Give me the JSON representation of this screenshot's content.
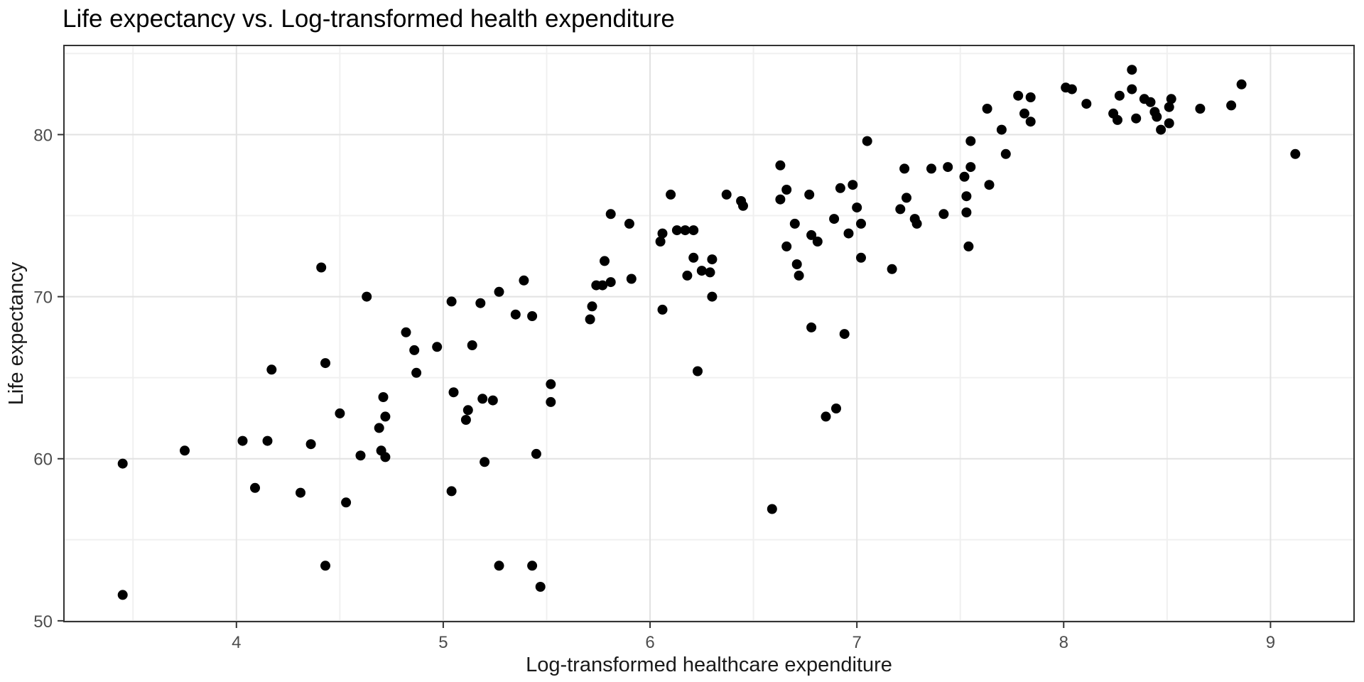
{
  "chart_data": {
    "type": "scatter",
    "title": "Life expectancy vs. Log-transformed health expenditure",
    "xlabel": "Log-transformed healthcare expenditure",
    "ylabel": "Life expectancy",
    "x_ticks": [
      4,
      5,
      6,
      7,
      8,
      9
    ],
    "y_ticks": [
      50,
      60,
      70,
      80
    ],
    "x_minor_ticks": [
      3.5,
      4.5,
      5.5,
      6.5,
      7.5,
      8.5,
      9.5
    ],
    "y_minor_ticks": [
      55,
      65,
      75,
      85
    ],
    "xlim": [
      3.166,
      9.404
    ],
    "ylim": [
      49.95,
      85.5
    ],
    "grid": true,
    "legend_position": "none",
    "points": [
      [
        3.45,
        51.6
      ],
      [
        3.45,
        59.7
      ],
      [
        3.75,
        60.5
      ],
      [
        4.03,
        61.1
      ],
      [
        4.09,
        58.2
      ],
      [
        4.15,
        61.1
      ],
      [
        4.17,
        65.5
      ],
      [
        4.31,
        57.9
      ],
      [
        4.36,
        60.9
      ],
      [
        4.41,
        71.8
      ],
      [
        4.43,
        53.4
      ],
      [
        4.43,
        65.9
      ],
      [
        4.5,
        62.8
      ],
      [
        4.53,
        57.3
      ],
      [
        4.6,
        60.2
      ],
      [
        4.63,
        70.0
      ],
      [
        4.69,
        61.9
      ],
      [
        4.7,
        60.5
      ],
      [
        4.71,
        63.8
      ],
      [
        4.72,
        60.1
      ],
      [
        4.72,
        62.6
      ],
      [
        4.82,
        67.8
      ],
      [
        4.86,
        66.7
      ],
      [
        4.87,
        65.3
      ],
      [
        4.97,
        66.9
      ],
      [
        5.04,
        58.0
      ],
      [
        5.04,
        69.7
      ],
      [
        5.05,
        64.1
      ],
      [
        5.11,
        62.4
      ],
      [
        5.12,
        63.0
      ],
      [
        5.14,
        67.0
      ],
      [
        5.18,
        69.6
      ],
      [
        5.19,
        63.7
      ],
      [
        5.2,
        59.8
      ],
      [
        5.24,
        63.6
      ],
      [
        5.27,
        53.4
      ],
      [
        5.27,
        70.3
      ],
      [
        5.35,
        68.9
      ],
      [
        5.39,
        71.0
      ],
      [
        5.43,
        53.4
      ],
      [
        5.43,
        68.8
      ],
      [
        5.45,
        60.3
      ],
      [
        5.47,
        52.1
      ],
      [
        5.52,
        63.5
      ],
      [
        5.52,
        64.6
      ],
      [
        5.71,
        68.6
      ],
      [
        5.72,
        69.4
      ],
      [
        5.74,
        70.7
      ],
      [
        5.77,
        70.7
      ],
      [
        5.78,
        72.2
      ],
      [
        5.81,
        70.9
      ],
      [
        5.81,
        75.1
      ],
      [
        5.9,
        74.5
      ],
      [
        5.91,
        71.1
      ],
      [
        6.05,
        73.4
      ],
      [
        6.06,
        69.2
      ],
      [
        6.06,
        73.9
      ],
      [
        6.1,
        76.3
      ],
      [
        6.13,
        74.1
      ],
      [
        6.17,
        74.1
      ],
      [
        6.18,
        71.3
      ],
      [
        6.21,
        72.4
      ],
      [
        6.21,
        74.1
      ],
      [
        6.23,
        65.4
      ],
      [
        6.25,
        71.6
      ],
      [
        6.29,
        71.5
      ],
      [
        6.3,
        70.0
      ],
      [
        6.3,
        72.3
      ],
      [
        6.37,
        76.3
      ],
      [
        6.44,
        75.9
      ],
      [
        6.45,
        75.6
      ],
      [
        6.59,
        56.9
      ],
      [
        6.63,
        76.0
      ],
      [
        6.63,
        78.1
      ],
      [
        6.66,
        73.1
      ],
      [
        6.66,
        76.6
      ],
      [
        6.7,
        74.5
      ],
      [
        6.71,
        72.0
      ],
      [
        6.72,
        71.3
      ],
      [
        6.77,
        76.3
      ],
      [
        6.78,
        68.1
      ],
      [
        6.78,
        73.8
      ],
      [
        6.81,
        73.4
      ],
      [
        6.85,
        62.6
      ],
      [
        6.89,
        74.8
      ],
      [
        6.9,
        63.1
      ],
      [
        6.92,
        76.7
      ],
      [
        6.94,
        67.7
      ],
      [
        6.96,
        73.9
      ],
      [
        6.98,
        76.9
      ],
      [
        7.0,
        75.5
      ],
      [
        7.02,
        72.4
      ],
      [
        7.02,
        74.5
      ],
      [
        7.05,
        79.6
      ],
      [
        7.17,
        71.7
      ],
      [
        7.21,
        75.4
      ],
      [
        7.23,
        77.9
      ],
      [
        7.24,
        76.1
      ],
      [
        7.28,
        74.8
      ],
      [
        7.29,
        74.5
      ],
      [
        7.36,
        77.9
      ],
      [
        7.42,
        75.1
      ],
      [
        7.44,
        78.0
      ],
      [
        7.52,
        77.4
      ],
      [
        7.53,
        75.2
      ],
      [
        7.53,
        76.2
      ],
      [
        7.54,
        73.1
      ],
      [
        7.55,
        78.0
      ],
      [
        7.55,
        79.6
      ],
      [
        7.63,
        81.6
      ],
      [
        7.64,
        76.9
      ],
      [
        7.7,
        80.3
      ],
      [
        7.72,
        78.8
      ],
      [
        7.78,
        82.4
      ],
      [
        7.81,
        81.3
      ],
      [
        7.84,
        80.8
      ],
      [
        7.84,
        82.3
      ],
      [
        8.01,
        82.9
      ],
      [
        8.04,
        82.8
      ],
      [
        8.11,
        81.9
      ],
      [
        8.24,
        81.3
      ],
      [
        8.26,
        80.9
      ],
      [
        8.27,
        82.4
      ],
      [
        8.33,
        82.8
      ],
      [
        8.33,
        84.0
      ],
      [
        8.35,
        81.0
      ],
      [
        8.39,
        82.2
      ],
      [
        8.42,
        82.0
      ],
      [
        8.44,
        81.4
      ],
      [
        8.45,
        81.1
      ],
      [
        8.47,
        80.3
      ],
      [
        8.51,
        80.7
      ],
      [
        8.51,
        81.7
      ],
      [
        8.52,
        82.2
      ],
      [
        8.66,
        81.6
      ],
      [
        8.81,
        81.8
      ],
      [
        8.86,
        83.1
      ],
      [
        9.12,
        78.8
      ]
    ]
  },
  "colors": {
    "point": "#000000",
    "grid_major": "#e2e2e2",
    "grid_minor": "#f0f0f0",
    "panel_border": "#333333",
    "tick_mark": "#333333",
    "axis_text": "#4d4d4d",
    "background": "#ffffff"
  }
}
